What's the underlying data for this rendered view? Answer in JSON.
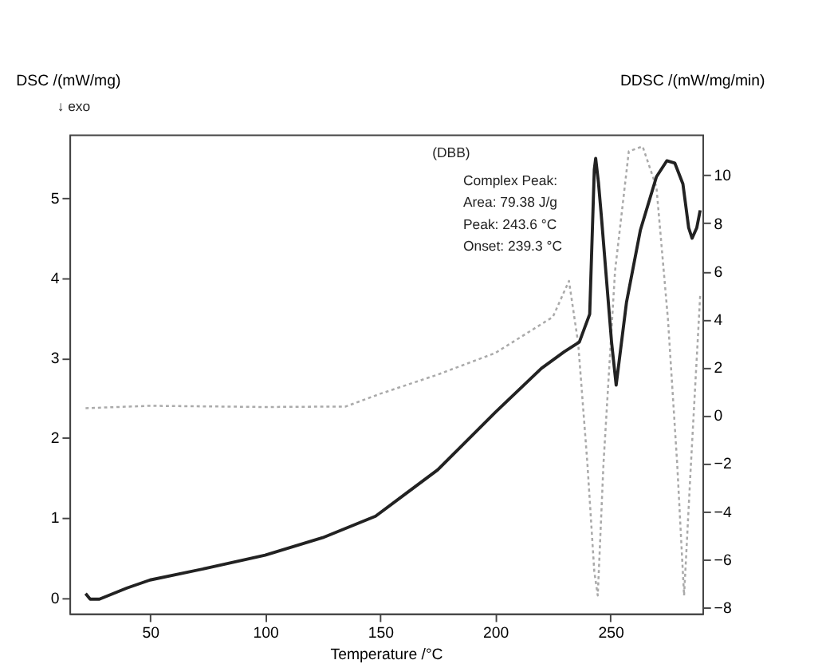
{
  "chart_data": {
    "type": "line",
    "xlabel": "Temperature /°C",
    "ylabel": "DSC /(mW/mg)",
    "y2label": "DDSC /(mW/mg/min)",
    "annotations": [
      "↓ exo",
      "(DBB)",
      "Complex Peak:",
      "Area:   79.38 J/g",
      "Peak:  243.6 °C",
      "Onset: 239.3 °C"
    ],
    "xlim": [
      15,
      290
    ],
    "xticks": [
      50,
      100,
      150,
      200,
      250
    ],
    "ylim": [
      -0.2,
      5.8
    ],
    "yticks": [
      0,
      1,
      2,
      3,
      4,
      5
    ],
    "y2lim": [
      -8.25,
      11.7
    ],
    "y2ticks": [
      -8,
      -6,
      -4,
      -2,
      0,
      2,
      4,
      6,
      8,
      10
    ],
    "grid": false,
    "series": [
      {
        "color": "#222222",
        "line_style": "solid",
        "x": [
          22,
          24,
          28,
          40,
          50,
          75,
          100,
          125,
          148,
          175,
          200,
          220,
          230,
          236.5,
          241,
          243,
          243.6,
          244.8,
          246,
          250.5,
          252.5,
          257,
          263,
          270,
          274.5,
          278,
          281.5,
          284,
          285.5,
          287.5,
          289
        ],
        "values": [
          0.05,
          -0.02,
          -0.02,
          0.12,
          0.22,
          0.37,
          0.53,
          0.75,
          1.02,
          1.6,
          2.32,
          2.87,
          3.08,
          3.2,
          3.55,
          5.36,
          5.5,
          5.2,
          4.8,
          3.2,
          2.66,
          3.7,
          4.6,
          5.27,
          5.47,
          5.44,
          5.18,
          4.63,
          4.5,
          4.63,
          4.85
        ]
      },
      {
        "color": "#aaaaaa",
        "line_style": "dotted",
        "axis": "y2",
        "x": [
          22,
          50,
          100,
          135,
          150,
          175,
          200,
          225,
          232,
          236,
          240,
          243,
          244.5,
          247,
          252,
          258,
          264,
          270,
          275,
          279,
          282,
          285,
          289
        ],
        "values": [
          0.3,
          0.4,
          0.35,
          0.37,
          0.9,
          1.7,
          2.6,
          4.1,
          5.6,
          3.0,
          -2.0,
          -6.5,
          -7.5,
          -2.0,
          6.0,
          11.0,
          11.2,
          9.5,
          4.0,
          -2.0,
          -7.5,
          -2.0,
          5.0
        ]
      }
    ]
  }
}
